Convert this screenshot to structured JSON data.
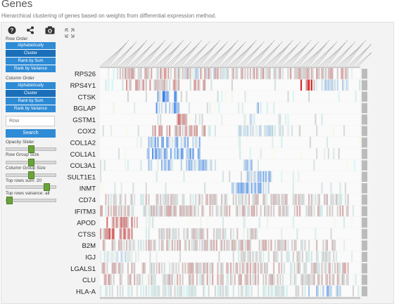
{
  "page": {
    "title": "Genes",
    "subtitle": "Hierarchical clustering of genes based on weights from differential expression method."
  },
  "toolbar": {
    "help_icon": "help-circle-icon",
    "share_icon": "share-icon",
    "camera_icon": "camera-icon",
    "fullscreen_icon": "expand-icon"
  },
  "controls": {
    "row_order_label": "Row Order",
    "row_order_buttons": [
      "Alphabetically",
      "Cluster",
      "Rank by Sum",
      "Rank by Variance"
    ],
    "row_order_active": "Cluster",
    "column_order_label": "Column Order",
    "column_order_buttons": [
      "Alphabetically",
      "Cluster",
      "Rank by Sum",
      "Rank by Variance"
    ],
    "column_order_active": "Cluster",
    "search_placeholder": "Row",
    "search_button": "Search",
    "opacity_label": "Opacity Slider",
    "opacity_value": 0.5,
    "row_group_label": "Row Group Size",
    "row_group_value": 0.5,
    "col_group_label": "Column Group Size",
    "col_group_value": 0.5,
    "top_rows_sum_label": "Top rows sum: 20",
    "top_rows_sum_value": 0.85,
    "top_rows_variance_label": "Top rows variance: all",
    "top_rows_variance_value": 0.0
  },
  "heatmap": {
    "rows": [
      "RPS26",
      "RPS4Y1",
      "CTSK",
      "BGLAP",
      "GSTM1",
      "COX2",
      "COL1A2",
      "COL1A1",
      "COL3A1",
      "SULT1E1",
      "INMT",
      "CD74",
      "IFITM3",
      "APOD",
      "CTSS",
      "B2M",
      "IGJ",
      "LGALS1",
      "CLU",
      "HLA-A"
    ],
    "colors": {
      "positive": "#d7191c",
      "negative": "#2c7bb6",
      "neutral": "#ffffff"
    }
  }
}
